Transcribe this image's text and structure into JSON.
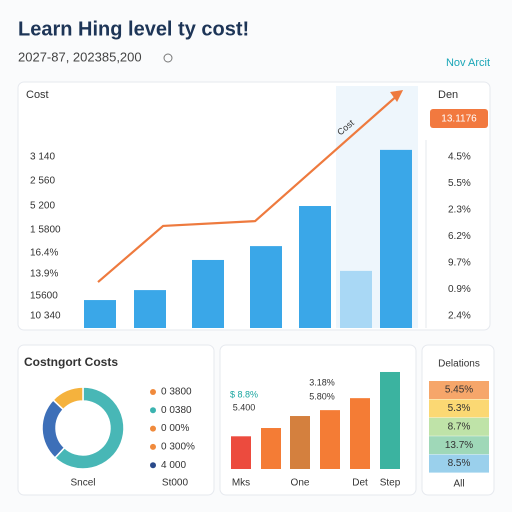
{
  "header": {
    "title": "Learn Hing level ty cost!",
    "subtitle": "2027-87, 202385,200",
    "link": "Nov Arcit"
  },
  "top_card": {
    "label_left": "Cost",
    "label_right": "Den",
    "badge": "13.1176",
    "left_labels": [
      "3 140",
      "2 560",
      "5 200",
      "1 5800",
      "16.4%",
      "13.9%",
      "15600",
      "10 340"
    ],
    "right_labels": [
      "4.5%",
      "5.5%",
      "2.3%",
      "6.2%",
      "9.7%",
      "0.9%",
      "2.4%"
    ]
  },
  "bottom_left": {
    "title": "Costngort Costs",
    "legend": [
      "0 3800",
      "0 0380",
      "0 00%",
      "0 300%",
      "4 000"
    ],
    "legend_colors": [
      "#f08a3c",
      "#3bb3b0",
      "#f08a3c",
      "#f08a3c",
      "#2a4a8a"
    ],
    "footer": "St000"
  },
  "bottom_right": {
    "title": "Delations",
    "rows": [
      "5.45%",
      "5.3%",
      "8.7%",
      "13.7%",
      "8.5%"
    ],
    "row_colors": [
      "#f6a66a",
      "#fbd873",
      "#bfe3a8",
      "#9fd8b8",
      "#9ad0ec"
    ],
    "footer": "All"
  },
  "chart_data": [
    {
      "type": "bar",
      "categories": [
        null,
        null,
        null,
        null,
        null,
        null,
        null
      ],
      "values": [
        11.5,
        15.6,
        28,
        33.7,
        50.2,
        23.5,
        73.3
      ],
      "colors": [
        "#3aa7e8",
        "#3aa7e8",
        "#3aa7e8",
        "#3aa7e8",
        "#3aa7e8",
        "#a9d8f5",
        "#3aa7e8"
      ],
      "ylim": [
        0,
        100
      ]
    },
    {
      "type": "line",
      "label": "Cost",
      "x": [
        8,
        26.6,
        52.9,
        94.3
      ],
      "values": [
        18.9,
        42,
        44,
        96.7
      ],
      "color": "#ee7a3e",
      "xlim": [
        0,
        100
      ],
      "ylim": [
        0,
        100
      ]
    },
    {
      "type": "pie",
      "label": "Sncel",
      "values": [
        62,
        25,
        13
      ],
      "colors": [
        "#48b7b6",
        "#3d6fb8",
        "#f5b23d"
      ]
    },
    {
      "type": "bar",
      "categories": [
        "Mks",
        null,
        "One",
        null,
        "Det",
        "Step"
      ],
      "values": [
        30,
        37.6,
        48.6,
        54,
        65,
        89
      ],
      "colors": [
        "#ec4b3e",
        "#f47c35",
        "#d4803e",
        "#f47c35",
        "#f47c35",
        "#3bb3a0"
      ],
      "ylim": [
        0,
        100
      ],
      "annotations": [
        "$ 8.8%",
        "5.400",
        "3.18%",
        "5.80%"
      ]
    }
  ]
}
